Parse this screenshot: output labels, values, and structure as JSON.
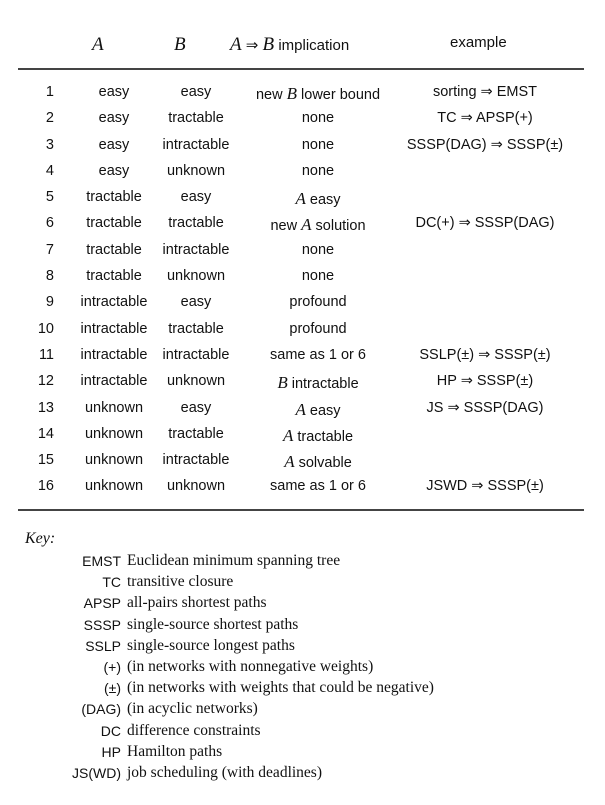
{
  "header": {
    "col_a": "A",
    "col_b": "B",
    "col_implication_a": "A",
    "col_implication_arrow": "⇒",
    "col_implication_b": "B",
    "col_implication_word": "implication",
    "col_example": "example"
  },
  "rows": [
    {
      "num": "1",
      "a": "easy",
      "b": "easy",
      "imp": "new B lower bound",
      "example": "sorting ⇒ EMST"
    },
    {
      "num": "2",
      "a": "easy",
      "b": "tractable",
      "imp": "none",
      "example": "TC ⇒ APSP(+)"
    },
    {
      "num": "3",
      "a": "easy",
      "b": "intractable",
      "imp": "none",
      "example": "SSSP(DAG) ⇒ SSSP(±)"
    },
    {
      "num": "4",
      "a": "easy",
      "b": "unknown",
      "imp": "none",
      "example": ""
    },
    {
      "num": "5",
      "a": "tractable",
      "b": "easy",
      "imp": "A easy",
      "example": ""
    },
    {
      "num": "6",
      "a": "tractable",
      "b": "tractable",
      "imp": "new A solution",
      "example": "DC(+) ⇒ SSSP(DAG)"
    },
    {
      "num": "7",
      "a": "tractable",
      "b": "intractable",
      "imp": "none",
      "example": ""
    },
    {
      "num": "8",
      "a": "tractable",
      "b": "unknown",
      "imp": "none",
      "example": ""
    },
    {
      "num": "9",
      "a": "intractable",
      "b": "easy",
      "imp": "profound",
      "example": ""
    },
    {
      "num": "10",
      "a": "intractable",
      "b": "tractable",
      "imp": "profound",
      "example": ""
    },
    {
      "num": "11",
      "a": "intractable",
      "b": "intractable",
      "imp": "same as 1 or 6",
      "example": "SSLP(±) ⇒ SSSP(±)"
    },
    {
      "num": "12",
      "a": "intractable",
      "b": "unknown",
      "imp": "B intractable",
      "example": "HP ⇒ SSSP(±)"
    },
    {
      "num": "13",
      "a": "unknown",
      "b": "easy",
      "imp": "A easy",
      "example": "JS ⇒ SSSP(DAG)"
    },
    {
      "num": "14",
      "a": "unknown",
      "b": "tractable",
      "imp": "A tractable",
      "example": ""
    },
    {
      "num": "15",
      "a": "unknown",
      "b": "intractable",
      "imp": "A solvable",
      "example": ""
    },
    {
      "num": "16",
      "a": "unknown",
      "b": "unknown",
      "imp": "same as 1 or 6",
      "example": "JSWD ⇒ SSSP(±)"
    }
  ],
  "key": {
    "title": "Key:",
    "items": [
      {
        "abbr": "EMST",
        "desc": "Euclidean minimum spanning tree"
      },
      {
        "abbr": "TC",
        "desc": "transitive closure"
      },
      {
        "abbr": "APSP",
        "desc": "all-pairs shortest paths"
      },
      {
        "abbr": "SSSP",
        "desc": "single-source shortest paths"
      },
      {
        "abbr": "SSLP",
        "desc": "single-source longest paths"
      },
      {
        "abbr": "(+)",
        "desc": "(in networks with nonnegative weights)"
      },
      {
        "abbr": "(±)",
        "desc": "(in networks with weights that could be negative)"
      },
      {
        "abbr": "(DAG)",
        "desc": "(in acyclic networks)"
      },
      {
        "abbr": "DC",
        "desc": "difference constraints"
      },
      {
        "abbr": "HP",
        "desc": "Hamilton paths"
      },
      {
        "abbr": "JS(WD)",
        "desc": "job scheduling (with deadlines)"
      }
    ]
  }
}
